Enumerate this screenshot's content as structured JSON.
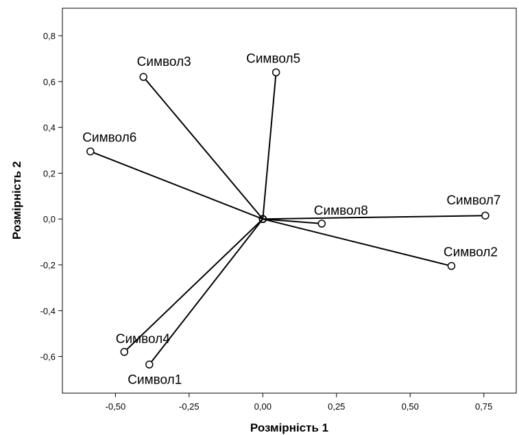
{
  "chart_data": {
    "type": "scatter",
    "title": "",
    "xlabel": "Розмірність 1",
    "ylabel": "Розмірність 2",
    "xlim": [
      -0.68,
      0.86
    ],
    "ylim": [
      -0.76,
      0.92
    ],
    "x_ticks": [
      {
        "value": -0.5,
        "label": "-0,50"
      },
      {
        "value": -0.25,
        "label": "-0,25"
      },
      {
        "value": 0.0,
        "label": "0,00"
      },
      {
        "value": 0.25,
        "label": "0,25"
      },
      {
        "value": 0.5,
        "label": "0,50"
      },
      {
        "value": 0.75,
        "label": "0,75"
      }
    ],
    "y_ticks": [
      {
        "value": -0.6,
        "label": "-0,6"
      },
      {
        "value": -0.4,
        "label": "-0,4"
      },
      {
        "value": -0.2,
        "label": "-0,2"
      },
      {
        "value": 0.0,
        "label": "0,0"
      },
      {
        "value": 0.2,
        "label": "0,2"
      },
      {
        "value": 0.4,
        "label": "0,4"
      },
      {
        "value": 0.6,
        "label": "0,6"
      },
      {
        "value": 0.8,
        "label": "0,8"
      }
    ],
    "grid": false,
    "legend": "none",
    "vectors_from_origin": true,
    "points": [
      {
        "label": "Символ1",
        "x": -0.385,
        "y": -0.635
      },
      {
        "label": "Символ2",
        "x": 0.64,
        "y": -0.205
      },
      {
        "label": "Символ3",
        "x": -0.405,
        "y": 0.62
      },
      {
        "label": "Символ4",
        "x": -0.47,
        "y": -0.58
      },
      {
        "label": "Символ5",
        "x": 0.045,
        "y": 0.64
      },
      {
        "label": "Символ6",
        "x": -0.585,
        "y": 0.295
      },
      {
        "label": "Символ7",
        "x": 0.755,
        "y": 0.015
      },
      {
        "label": "Символ8",
        "x": 0.2,
        "y": -0.02
      }
    ]
  }
}
